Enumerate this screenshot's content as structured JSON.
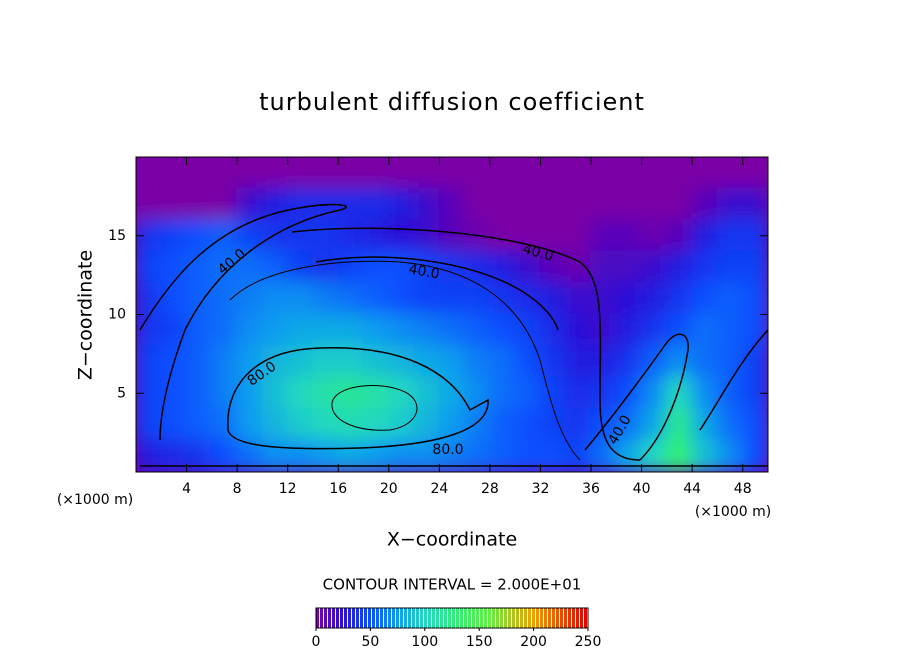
{
  "chart_data": {
    "type": "contour",
    "title": "turbulent diffusion coefficient",
    "xlabel": "X−coordinate",
    "ylabel": "Z−coordinate",
    "x_unit_left": "(×1000 m)",
    "x_unit_right": "(×1000 m)",
    "contour_interval": "CONTOUR INTERVAL = 2.000E+01",
    "contour_labels": [
      "40.0",
      "40.0",
      "40.0",
      "80.0",
      "80.0",
      "40.0"
    ],
    "xlim": [
      0,
      50
    ],
    "ylim": [
      0,
      20
    ],
    "xticks": [
      4,
      8,
      12,
      16,
      20,
      24,
      28,
      32,
      36,
      40,
      44,
      48
    ],
    "yticks": [
      5,
      10,
      15
    ],
    "x": [
      1,
      3,
      5,
      7,
      9,
      11,
      13,
      15,
      17,
      19,
      21,
      23,
      25,
      27,
      29,
      31,
      33,
      35,
      37,
      39,
      41,
      43,
      45,
      47,
      49
    ],
    "zc": [
      19,
      17,
      15,
      13,
      11,
      9,
      7,
      5,
      3,
      1
    ],
    "z": [
      [
        0,
        0,
        0,
        0,
        0,
        0,
        0,
        0,
        0,
        0,
        0,
        0,
        0,
        0,
        0,
        0,
        0,
        0,
        0,
        0,
        0,
        0,
        0,
        0,
        0
      ],
      [
        0,
        0,
        0,
        0,
        20,
        30,
        35,
        35,
        35,
        35,
        30,
        20,
        10,
        0,
        0,
        0,
        0,
        0,
        0,
        0,
        0,
        0,
        10,
        20,
        20
      ],
      [
        40,
        45,
        50,
        55,
        45,
        40,
        40,
        40,
        35,
        30,
        25,
        20,
        10,
        5,
        0,
        0,
        0,
        0,
        10,
        10,
        5,
        10,
        30,
        40,
        40
      ],
      [
        45,
        50,
        55,
        60,
        60,
        55,
        45,
        40,
        45,
        50,
        50,
        45,
        40,
        35,
        30,
        20,
        10,
        5,
        15,
        15,
        20,
        30,
        40,
        45,
        45
      ],
      [
        40,
        50,
        55,
        60,
        65,
        70,
        70,
        65,
        60,
        55,
        50,
        45,
        45,
        45,
        40,
        35,
        30,
        20,
        20,
        25,
        30,
        40,
        50,
        55,
        50
      ],
      [
        40,
        45,
        55,
        60,
        70,
        75,
        80,
        80,
        80,
        75,
        70,
        65,
        60,
        55,
        50,
        45,
        35,
        25,
        20,
        30,
        40,
        50,
        60,
        55,
        50
      ],
      [
        45,
        50,
        55,
        65,
        75,
        85,
        90,
        95,
        95,
        90,
        85,
        80,
        75,
        65,
        60,
        50,
        40,
        30,
        30,
        40,
        55,
        70,
        60,
        55,
        45
      ],
      [
        45,
        50,
        55,
        65,
        75,
        90,
        100,
        110,
        115,
        110,
        100,
        90,
        80,
        70,
        60,
        55,
        45,
        35,
        40,
        50,
        70,
        100,
        70,
        55,
        45
      ],
      [
        45,
        50,
        55,
        60,
        75,
        85,
        95,
        100,
        105,
        100,
        95,
        85,
        75,
        65,
        55,
        50,
        45,
        40,
        50,
        60,
        80,
        120,
        80,
        60,
        50
      ],
      [
        30,
        35,
        40,
        50,
        60,
        70,
        70,
        75,
        80,
        75,
        70,
        70,
        65,
        60,
        55,
        50,
        50,
        45,
        60,
        80,
        100,
        130,
        90,
        70,
        50
      ]
    ],
    "colormap": [
      {
        "value": 0,
        "color": "#7a00a6"
      },
      {
        "value": 25,
        "color": "#2a10d8"
      },
      {
        "value": 50,
        "color": "#0a50ff"
      },
      {
        "value": 75,
        "color": "#0a9cf0"
      },
      {
        "value": 100,
        "color": "#20d8c0"
      },
      {
        "value": 130,
        "color": "#30f070"
      },
      {
        "value": 160,
        "color": "#60f040"
      },
      {
        "value": 200,
        "color": "#f0a000"
      },
      {
        "value": 250,
        "color": "#e00000"
      }
    ],
    "clim": [
      0,
      250
    ],
    "colorbar_ticks": [
      0,
      50,
      100,
      150,
      200,
      250
    ]
  }
}
